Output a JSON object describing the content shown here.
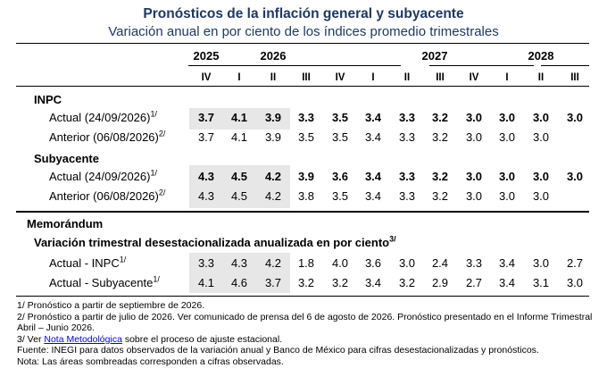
{
  "title": "Pronósticos de la inflación general y subyacente",
  "subtitle": "Variación anual en por ciento de los índices promedio trimestrales",
  "years": [
    "2025",
    "2026",
    "2027",
    "2028"
  ],
  "quarters": [
    "IV",
    "I",
    "II",
    "III",
    "IV",
    "I",
    "II",
    "III",
    "IV",
    "I",
    "II",
    "III"
  ],
  "sections": {
    "inpc": "INPC",
    "subyacente": "Subyacente",
    "memo": "Memorándum",
    "trimestral": "Variación trimestral desestacionalizada anualizada en por ciento",
    "trimestral_sup": "3/"
  },
  "rows": {
    "inpc_actual": {
      "label": "Actual (24/09/2026)",
      "sup": "1/",
      "values": [
        "3.7",
        "4.1",
        "3.9",
        "3.3",
        "3.5",
        "3.4",
        "3.3",
        "3.2",
        "3.0",
        "3.0",
        "3.0",
        "3.0"
      ]
    },
    "inpc_anterior": {
      "label": "Anterior (06/08/2026)",
      "sup": "2/",
      "values": [
        "3.7",
        "4.1",
        "3.9",
        "3.5",
        "3.5",
        "3.4",
        "3.3",
        "3.2",
        "3.0",
        "3.0",
        "3.0",
        ""
      ]
    },
    "sub_actual": {
      "label": "Actual (24/09/2026)",
      "sup": "1/",
      "values": [
        "4.3",
        "4.5",
        "4.2",
        "3.9",
        "3.6",
        "3.4",
        "3.3",
        "3.2",
        "3.0",
        "3.0",
        "3.0",
        "3.0"
      ]
    },
    "sub_anterior": {
      "label": "Anterior (06/08/2026)",
      "sup": "2/",
      "values": [
        "4.3",
        "4.5",
        "4.2",
        "3.8",
        "3.5",
        "3.4",
        "3.3",
        "3.2",
        "3.0",
        "3.0",
        "3.0",
        ""
      ]
    },
    "memo_inpc": {
      "label": "Actual - INPC",
      "sup": "1/",
      "values": [
        "3.3",
        "4.3",
        "4.2",
        "1.8",
        "4.0",
        "3.6",
        "3.0",
        "2.4",
        "3.3",
        "3.4",
        "3.0",
        "2.7"
      ]
    },
    "memo_sub": {
      "label": "Actual - Subyacente",
      "sup": "1/",
      "values": [
        "4.1",
        "4.6",
        "3.7",
        "3.2",
        "3.2",
        "3.4",
        "3.2",
        "2.9",
        "2.7",
        "3.4",
        "3.1",
        "3.0"
      ]
    }
  },
  "notes": {
    "n1": "1/ Pronóstico a partir de septiembre de 2026.",
    "n2": "2/ Pronóstico a partir de julio de 2026. Ver comunicado de prensa del 6 de agosto de 2026. Pronóstico presentado en el Informe Trimestral Abril – Junio 2026.",
    "n3_pre": "3/ Ver ",
    "n3_link": "Nota Metodológica",
    "n3_post": " sobre el proceso de ajuste estacional.",
    "fuente": "Fuente: INEGI para datos observados de la variación anual y Banco de México para cifras desestacionalizadas y pronósticos.",
    "nota": "Nota: Las áreas sombreadas corresponden a cifras observadas."
  },
  "colors": {
    "title": "#1f3864",
    "shade": "#e7e7e7",
    "link": "#0000ee"
  }
}
